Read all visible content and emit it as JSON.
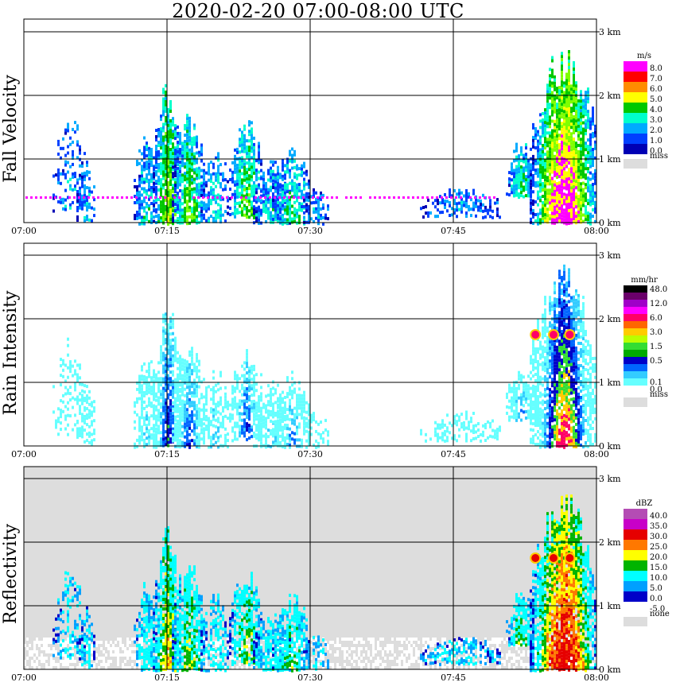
{
  "title": "2020-02-20   07:00-08:00 UTC",
  "chart_data": [
    {
      "type": "heatmap",
      "panel": "fall-velocity",
      "ylabel": "Fall Velocity",
      "x_ticks": [
        "07:00",
        "07:15",
        "07:30",
        "07:45",
        "08:00"
      ],
      "y_ticks": [
        "0 km",
        "1 km",
        "2 km",
        "3 km"
      ],
      "ylim_km": [
        0,
        3.2
      ],
      "background": "#ffffff",
      "legend": {
        "unit": "m/s",
        "levels": [
          {
            "label": "8.0",
            "color": "#ff00ff"
          },
          {
            "label": "7.0",
            "color": "#ff0000"
          },
          {
            "label": "6.0",
            "color": "#ff8c00"
          },
          {
            "label": "5.0",
            "color": "#ffff00"
          },
          {
            "label": "4.0",
            "color": "#00c800"
          },
          {
            "label": "3.0",
            "color": "#00ffcc"
          },
          {
            "label": "2.0",
            "color": "#00aaff"
          },
          {
            "label": "1.0",
            "color": "#0040ff"
          },
          {
            "label": "0.0",
            "color": "#0000b4"
          }
        ],
        "missing": {
          "label": "miss",
          "color": "#dddddd"
        }
      }
    },
    {
      "type": "heatmap",
      "panel": "rain-intensity",
      "ylabel": "Rain Intensity",
      "x_ticks": [
        "07:00",
        "07:15",
        "07:30",
        "07:45",
        "08:00"
      ],
      "y_ticks": [
        "0 km",
        "1 km",
        "2 km",
        "3 km"
      ],
      "ylim_km": [
        0,
        3.2
      ],
      "background": "#ffffff",
      "legend": {
        "unit": "mm/hr",
        "levels": [
          {
            "label": "48.0",
            "color": "#000000"
          },
          {
            "label": "",
            "color": "#6a006a"
          },
          {
            "label": "12.0",
            "color": "#a000c8"
          },
          {
            "label": "",
            "color": "#ff00ff"
          },
          {
            "label": "6.0",
            "color": "#ff0066"
          },
          {
            "label": "",
            "color": "#ff6600"
          },
          {
            "label": "3.0",
            "color": "#ffcc00"
          },
          {
            "label": "",
            "color": "#bbff00"
          },
          {
            "label": "1.5",
            "color": "#33dd33"
          },
          {
            "label": "",
            "color": "#00aa00"
          },
          {
            "label": "0.5",
            "color": "#0000c8"
          },
          {
            "label": "",
            "color": "#0066ff"
          },
          {
            "label": "",
            "color": "#33ccff"
          },
          {
            "label": "0.1",
            "color": "#66ffff"
          },
          {
            "label": "0.0",
            "color": "#ffffff"
          }
        ],
        "missing": {
          "label": "miss",
          "color": "#dddddd"
        }
      }
    },
    {
      "type": "heatmap",
      "panel": "reflectivity",
      "ylabel": "Reflectivity",
      "x_ticks": [
        "07:00",
        "07:15",
        "07:30",
        "07:45",
        "08:00"
      ],
      "y_ticks": [
        "0 km",
        "1 km",
        "2 km",
        "3 km"
      ],
      "ylim_km": [
        0,
        3.2
      ],
      "background": "#dddddd",
      "legend": {
        "unit": "dBZ",
        "levels": [
          {
            "label": "40.0",
            "color": "#b44cb4"
          },
          {
            "label": "35.0",
            "color": "#c800c8"
          },
          {
            "label": "30.0",
            "color": "#e60000"
          },
          {
            "label": "25.0",
            "color": "#ff7800"
          },
          {
            "label": "20.0",
            "color": "#ffff00"
          },
          {
            "label": "15.0",
            "color": "#00b400"
          },
          {
            "label": "10.0",
            "color": "#00ffff"
          },
          {
            "label": "5.0",
            "color": "#00a0ff"
          },
          {
            "label": "0.0",
            "color": "#0000c8"
          },
          {
            "label": "-5.0",
            "color": "#ffffff"
          }
        ],
        "missing": {
          "label": "none",
          "color": "#dddddd"
        }
      }
    }
  ]
}
